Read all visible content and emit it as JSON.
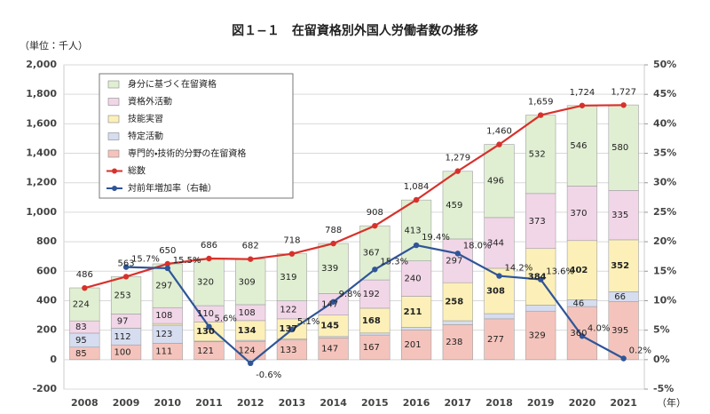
{
  "chart_data": {
    "type": "bar",
    "stacked": true,
    "title": "図１−１　在留資格別外国人労働者数の推移",
    "y_label": "（単位：千人）",
    "x_label": "（年）",
    "categories": [
      "2008",
      "2009",
      "2010",
      "2011",
      "2012",
      "2013",
      "2014",
      "2015",
      "2016",
      "2017",
      "2018",
      "2019",
      "2020",
      "2021"
    ],
    "ylim": [
      -200,
      2000
    ],
    "yticks": [
      -200,
      0,
      200,
      400,
      600,
      800,
      {
        "value": 1000,
        "label": "1,000"
      },
      {
        "value": 1200,
        "label": "1,200"
      },
      {
        "value": 1400,
        "label": "1,400"
      },
      {
        "value": 1600,
        "label": "1,600"
      },
      {
        "value": 1800,
        "label": "1,800"
      },
      {
        "value": 2000,
        "label": "2,000"
      }
    ],
    "y2lim": [
      -5,
      50
    ],
    "y2ticks": [
      {
        "value": -5,
        "label": "-5%"
      },
      {
        "value": 0,
        "label": "0%"
      },
      {
        "value": 5,
        "label": "5%"
      },
      {
        "value": 10,
        "label": "10%"
      },
      {
        "value": 15,
        "label": "15%"
      },
      {
        "value": 20,
        "label": "20%"
      },
      {
        "value": 25,
        "label": "25%"
      },
      {
        "value": 30,
        "label": "30%"
      },
      {
        "value": 35,
        "label": "35%"
      },
      {
        "value": 40,
        "label": "40%"
      },
      {
        "value": 45,
        "label": "45%"
      },
      {
        "value": 50,
        "label": "50%"
      }
    ],
    "legend": "upper left",
    "series": [
      {
        "name": "専門的・技術的分野の在留資格",
        "type": "bar",
        "color": "#f4c4bc",
        "values": [
          85,
          100,
          111,
          121,
          124,
          133,
          147,
          167,
          201,
          238,
          277,
          329,
          360,
          395
        ],
        "value_labels": [
          "85",
          "100",
          "111",
          "121",
          "124",
          "133",
          "147",
          "167",
          "201",
          "238",
          "277",
          "329",
          "360",
          "395"
        ]
      },
      {
        "name": "特定活動",
        "type": "bar",
        "color": "#d6ddf0",
        "values": [
          95,
          112,
          123,
          5,
          7,
          7,
          10,
          14,
          18,
          26,
          35,
          41,
          46,
          66
        ],
        "value_labels": [
          "95",
          "112",
          "123",
          null,
          null,
          null,
          null,
          null,
          null,
          null,
          null,
          null,
          "46",
          "66"
        ]
      },
      {
        "name": "技能実習",
        "type": "bar",
        "color": "#fcf0b8",
        "values": [
          0,
          1,
          11,
          130,
          134,
          137,
          145,
          168,
          211,
          258,
          308,
          384,
          402,
          352
        ],
        "value_labels": [
          null,
          null,
          null,
          "130",
          "134",
          "137",
          "145",
          "168",
          "211",
          "258",
          "308",
          "384",
          "402",
          "352"
        ]
      },
      {
        "name": "資格外活動",
        "type": "bar",
        "color": "#f1d6e8",
        "values": [
          83,
          97,
          108,
          110,
          108,
          122,
          147,
          192,
          240,
          297,
          344,
          373,
          370,
          335
        ],
        "value_labels": [
          "83",
          "97",
          "108",
          "110",
          "108",
          "122",
          "147",
          "192",
          "240",
          "297",
          "344",
          "373",
          "370",
          "335"
        ]
      },
      {
        "name": "身分に基づく在留資格",
        "type": "bar",
        "color": "#e0efd2",
        "values": [
          224,
          253,
          297,
          320,
          309,
          319,
          339,
          367,
          413,
          459,
          496,
          532,
          546,
          580
        ],
        "value_labels": [
          "224",
          "253",
          "297",
          "320",
          "309",
          "319",
          "339",
          "367",
          "413",
          "459",
          "496",
          "532",
          "546",
          "580"
        ]
      },
      {
        "name": "総数",
        "type": "line",
        "color": "#d7312c",
        "values": [
          486,
          563,
          650,
          686,
          682,
          718,
          788,
          908,
          1084,
          1279,
          1460,
          1659,
          1724,
          1727
        ],
        "value_labels": [
          "486",
          "563",
          "650",
          "686",
          "682",
          "718",
          "788",
          "908",
          "1,084",
          "1,279",
          "1,460",
          "1,659",
          "1,724",
          "1,727"
        ]
      },
      {
        "name": "対前年増加率（右軸）",
        "type": "line",
        "axis": "y2",
        "color": "#2f5597",
        "values": [
          null,
          15.7,
          15.5,
          5.6,
          -0.6,
          5.1,
          9.8,
          15.3,
          19.4,
          18.0,
          14.2,
          13.6,
          4.0,
          0.2
        ],
        "value_labels": [
          null,
          "15.7%",
          "15.5%",
          "5.6%",
          "-0.6%",
          "5.1%",
          "9.8%",
          "15.3%",
          "19.4%",
          "18.0%",
          "14.2%",
          "13.6%",
          "4.0%",
          "0.2%"
        ]
      }
    ]
  }
}
